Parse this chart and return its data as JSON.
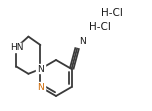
{
  "background_color": "#ffffff",
  "bond_color": "#3a3a3a",
  "bond_width": 1.3,
  "text_color": "#1a1a1a",
  "n_color": "#cc6600",
  "font_size": 6.5,
  "hcl1_text": "H-Cl",
  "hcl2_text": "H-Cl",
  "hn_text": "HN",
  "n_pip_text": "N",
  "n_pyr_text": "N",
  "cn_n_text": "N",
  "figw": 1.52,
  "figh": 1.11,
  "dpi": 100
}
